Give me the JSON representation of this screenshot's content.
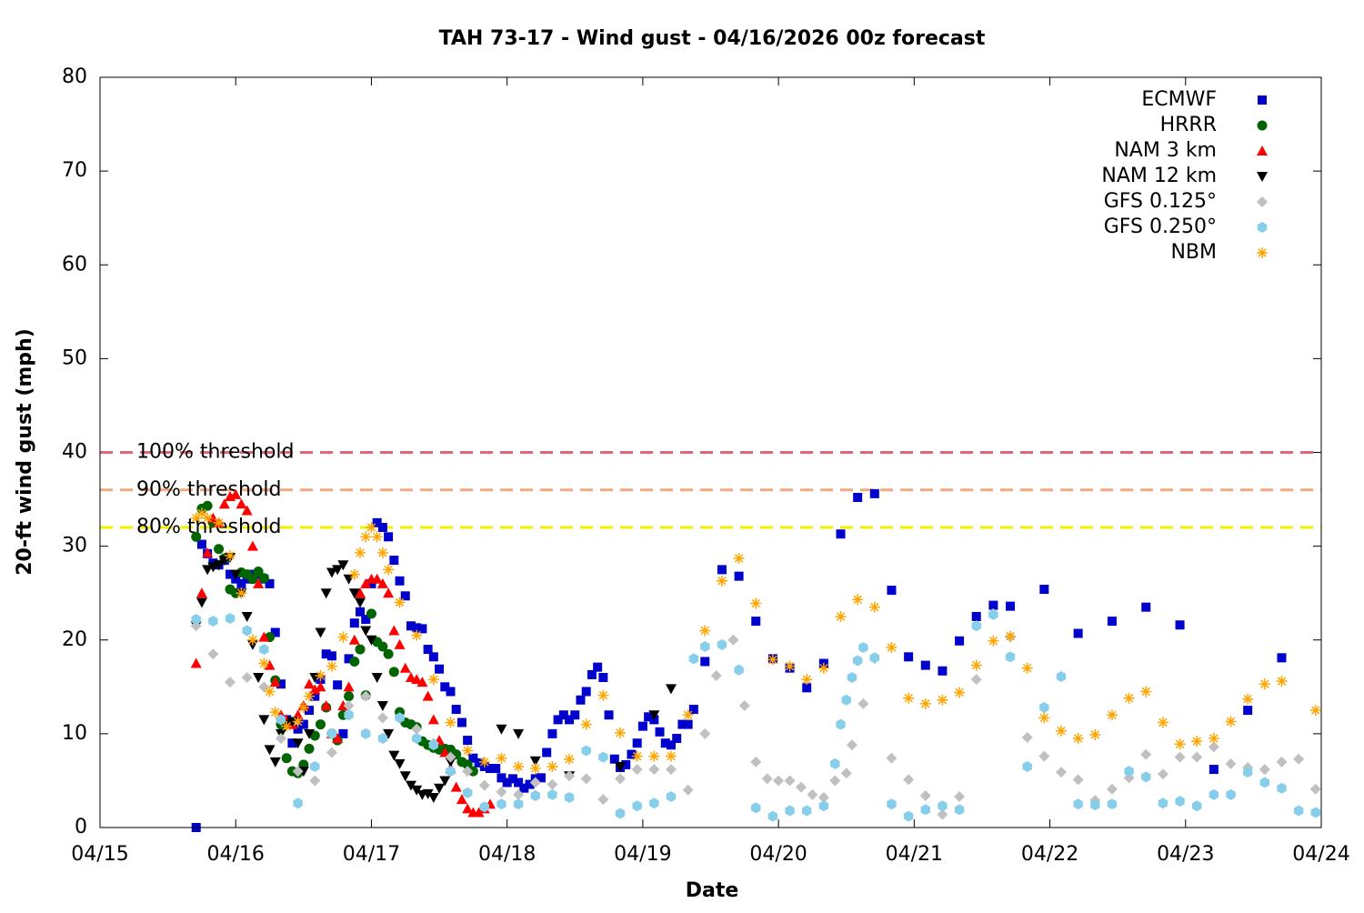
{
  "chart_data": {
    "type": "scatter",
    "title": "TAH 73-17 - Wind gust - 04/16/2026 00z forecast",
    "x_label": "Date",
    "y_label": "20-ft wind gust (mph)",
    "xlim": [
      0,
      216
    ],
    "xticks": [
      {
        "value": 0,
        "label": "04/15"
      },
      {
        "value": 24,
        "label": "04/16"
      },
      {
        "value": 48,
        "label": "04/17"
      },
      {
        "value": 72,
        "label": "04/18"
      },
      {
        "value": 96,
        "label": "04/19"
      },
      {
        "value": 120,
        "label": "04/20"
      },
      {
        "value": 144,
        "label": "04/21"
      },
      {
        "value": 168,
        "label": "04/22"
      },
      {
        "value": 192,
        "label": "04/23"
      },
      {
        "value": 216,
        "label": "04/24"
      }
    ],
    "ylim": [
      0,
      80
    ],
    "yticks": [
      0,
      10,
      20,
      30,
      40,
      50,
      60,
      70,
      80
    ],
    "legend": "upper right",
    "thresholds": [
      {
        "label": "100% threshold",
        "value": 40,
        "color": "#e0667a"
      },
      {
        "label": "90% threshold",
        "value": 36,
        "color": "#f4a97c"
      },
      {
        "label": "80% threshold",
        "value": 32,
        "color": "#f0f000"
      }
    ],
    "series": [
      {
        "name": "ECMWF",
        "color": "#0000cc",
        "marker": "square",
        "x": [
          17,
          18,
          19,
          20,
          21,
          22,
          23,
          24,
          25,
          26,
          27,
          28,
          29,
          30,
          31,
          32,
          33,
          34,
          35,
          36,
          37,
          38,
          39,
          40,
          41,
          42,
          43,
          44,
          45,
          46,
          47,
          48,
          49,
          50,
          51,
          52,
          53,
          54,
          55,
          56,
          57,
          58,
          59,
          60,
          61,
          62,
          63,
          64,
          65,
          66,
          67,
          68,
          69,
          70,
          71,
          72,
          73,
          74,
          75,
          76,
          77,
          78,
          79,
          80,
          81,
          82,
          83,
          84,
          85,
          86,
          87,
          88,
          89,
          90,
          91,
          92,
          93,
          94,
          95,
          96,
          97,
          98,
          99,
          100,
          101,
          102,
          103,
          104,
          105,
          107,
          110,
          113,
          116,
          119,
          122,
          125,
          128,
          131,
          134,
          137,
          140,
          143,
          146,
          149,
          152,
          155,
          158,
          161,
          167,
          173,
          179,
          185,
          191,
          197,
          203,
          209
        ],
        "values": [
          0,
          30.2,
          29.2,
          28.2,
          28,
          28.5,
          27,
          26.5,
          26,
          26.5,
          27,
          27,
          26.5,
          26,
          20.8,
          15.3,
          11.5,
          9,
          10.5,
          11,
          12.5,
          14,
          15.8,
          18.5,
          18.3,
          15.2,
          10,
          18,
          21.8,
          23,
          22.2,
          26,
          32.5,
          32,
          31,
          28.5,
          26.3,
          24.7,
          21.5,
          21.3,
          21.2,
          19,
          18.2,
          16.9,
          15,
          14.5,
          12.6,
          11.2,
          9.3,
          7.4,
          6.9,
          6.5,
          6.3,
          6.3,
          5.3,
          4.8,
          5.2,
          4.8,
          4.2,
          4.6,
          5.2,
          5.3,
          8,
          10,
          11.5,
          12,
          11.5,
          12,
          13.6,
          14.5,
          16.3,
          17.1,
          16,
          12,
          7.3,
          6.4,
          6.7,
          7.8,
          9,
          10.8,
          11.8,
          11.5,
          10.2,
          9,
          8.8,
          9.5,
          11,
          11,
          12.6,
          17.7,
          27.5,
          26.8,
          22,
          18,
          17,
          14.9,
          17.5,
          31.3,
          35.2,
          35.6,
          25.3,
          18.2,
          17.3,
          16.7,
          19.9,
          22.5,
          23.7,
          23.6,
          25.4,
          20.7,
          22,
          23.5,
          21.6,
          6.2,
          12.5,
          18.1
        ]
      },
      {
        "name": "HRRR",
        "color": "#006400",
        "marker": "circle",
        "x": [
          17,
          18,
          19,
          20,
          21,
          22,
          23,
          24,
          25,
          26,
          27,
          28,
          29,
          30,
          31,
          32,
          33,
          34,
          35,
          36,
          37,
          38,
          39,
          40,
          41,
          42,
          43,
          44,
          45,
          46,
          47,
          48,
          49,
          50,
          51,
          52,
          53,
          54,
          55,
          56,
          57,
          58,
          59,
          60,
          61,
          62,
          63,
          64,
          65,
          66
        ],
        "values": [
          31,
          34,
          34.3,
          32.5,
          29.7,
          28.7,
          25.4,
          25,
          27.2,
          27,
          26.5,
          27.3,
          26.6,
          20.3,
          15.7,
          11,
          7.4,
          6,
          5.8,
          6.7,
          8.4,
          9.8,
          11,
          12.8,
          10,
          9.3,
          12,
          14,
          17.7,
          19,
          14.1,
          22.8,
          19.8,
          19.3,
          18.5,
          16.6,
          12.3,
          11.2,
          11,
          10.7,
          9.2,
          8.8,
          8.5,
          8.3,
          8.4,
          8.3,
          7.8,
          7,
          6.7,
          6
        ]
      },
      {
        "name": "NAM 3 km",
        "color": "#ff0000",
        "marker": "triangle",
        "x": [
          17,
          18,
          19,
          20,
          21,
          22,
          23,
          24,
          25,
          26,
          27,
          28,
          29,
          30,
          31,
          32,
          33,
          34,
          35,
          36,
          37,
          38,
          39,
          40,
          41,
          42,
          43,
          44,
          45,
          46,
          47,
          48,
          49,
          50,
          51,
          52,
          53,
          54,
          55,
          56,
          57,
          58,
          59,
          60,
          61,
          62,
          63,
          64,
          65,
          66,
          67,
          68,
          69
        ],
        "values": [
          17.5,
          25,
          29.3,
          33,
          32.5,
          34.5,
          35.3,
          35.5,
          34.5,
          33.8,
          30,
          26,
          20.3,
          17.3,
          15.5,
          12,
          11.5,
          11,
          12,
          13,
          15.3,
          14.7,
          15,
          13,
          10,
          9.5,
          13,
          15,
          20,
          25,
          26,
          26.5,
          26.5,
          26,
          25,
          21,
          19.5,
          17,
          16,
          15.8,
          15.5,
          14,
          11.5,
          9.3,
          8,
          6.3,
          4.3,
          3,
          2,
          1.6,
          1.6,
          2,
          2.5
        ]
      },
      {
        "name": "NAM 12 km",
        "color": "#000000",
        "marker": "triangle-down",
        "x": [
          17,
          18,
          19,
          20,
          21,
          22,
          23,
          24,
          25,
          26,
          27,
          28,
          29,
          30,
          31,
          32,
          33,
          34,
          35,
          36,
          37,
          38,
          39,
          40,
          41,
          42,
          43,
          44,
          45,
          46,
          47,
          48,
          49,
          50,
          51,
          52,
          53,
          54,
          55,
          56,
          57,
          58,
          59,
          60,
          61,
          62,
          71,
          74,
          77,
          83,
          92,
          98,
          101
        ],
        "values": [
          21.5,
          24,
          27.5,
          27.8,
          28,
          28.5,
          28.8,
          27,
          25,
          22.5,
          19.5,
          16,
          11.5,
          8.3,
          7,
          10,
          11,
          11.3,
          9,
          6,
          10,
          16,
          20.8,
          25,
          27.2,
          27.5,
          28,
          26.5,
          25,
          24,
          21,
          20,
          16,
          13,
          10,
          7.7,
          6.8,
          5.5,
          4.5,
          4,
          3.5,
          3.6,
          3.2,
          4.2,
          5,
          7,
          10.5,
          10,
          7.1,
          5.5,
          6.5,
          12,
          14.8
        ]
      },
      {
        "name": "GFS 0.125°",
        "color": "#c0c0c0",
        "marker": "diamond",
        "x": [
          17,
          20,
          23,
          26,
          29,
          32,
          35,
          38,
          41,
          44,
          47,
          50,
          53,
          56,
          59,
          62,
          65,
          68,
          71,
          74,
          77,
          80,
          83,
          86,
          89,
          92,
          95,
          98,
          101,
          104,
          107,
          109,
          112,
          114,
          116,
          118,
          120,
          122,
          124,
          126,
          128,
          130,
          132,
          133,
          135,
          137,
          140,
          143,
          146,
          149,
          152,
          155,
          158,
          161,
          164,
          167,
          170,
          173,
          176,
          179,
          182,
          185,
          188,
          191,
          194,
          197,
          200,
          203,
          206,
          209,
          212,
          215
        ],
        "values": [
          21.5,
          18.5,
          15.5,
          16,
          15,
          9.5,
          6,
          5,
          8,
          13,
          14,
          11.7,
          11.7,
          10.5,
          9,
          7.5,
          6,
          4.5,
          3.8,
          3.5,
          4.8,
          4.6,
          5.5,
          5.2,
          3,
          5.2,
          6.2,
          6.2,
          6.2,
          4,
          10,
          16.2,
          20,
          13,
          7,
          5.2,
          5,
          5,
          4.3,
          3.5,
          3.2,
          5,
          5.8,
          8.8,
          13.2,
          18,
          7.4,
          5.1,
          3.4,
          1.4,
          3.3,
          15.8,
          22.8,
          20.3,
          9.6,
          7.6,
          5.9,
          5.1,
          2.9,
          4.1,
          5.3,
          7.8,
          5.7,
          7.5,
          7.5,
          8.6,
          6.8,
          6.4,
          6.2,
          7,
          7.3,
          4.1
        ]
      },
      {
        "name": "GFS 0.250°",
        "color": "#87ceeb",
        "marker": "hexagon",
        "x": [
          17,
          20,
          23,
          26,
          29,
          32,
          35,
          38,
          41,
          44,
          47,
          50,
          53,
          56,
          59,
          62,
          65,
          68,
          71,
          74,
          77,
          80,
          83,
          86,
          89,
          92,
          95,
          98,
          101,
          105,
          107,
          110,
          113,
          116,
          119,
          122,
          125,
          128,
          130,
          131,
          132,
          133,
          134,
          135,
          137,
          140,
          143,
          146,
          149,
          152,
          155,
          158,
          161,
          164,
          167,
          170,
          173,
          176,
          179,
          182,
          185,
          188,
          191,
          194,
          197,
          200,
          203,
          206,
          209,
          212,
          215
        ],
        "values": [
          22.2,
          22,
          22.3,
          21,
          19,
          11.5,
          2.6,
          6.5,
          10,
          12,
          10,
          9.5,
          11.7,
          9.5,
          8.8,
          6,
          3.7,
          2.2,
          2.5,
          2.5,
          3.4,
          3.5,
          3.2,
          8.2,
          7.5,
          1.5,
          2.3,
          2.6,
          3.3,
          18,
          19.3,
          19.5,
          16.8,
          2.1,
          1.2,
          1.8,
          1.8,
          2.3,
          6.8,
          11,
          13.6,
          16,
          17.8,
          19.2,
          18.1,
          2.5,
          1.2,
          1.9,
          2.3,
          1.9,
          21.5,
          22.7,
          18.2,
          6.5,
          12.8,
          16.1,
          2.5,
          2.4,
          2.5,
          6,
          5.4,
          2.6,
          2.8,
          2.3,
          3.5,
          3.5,
          5.9,
          4.8,
          4.2,
          1.8,
          1.6
        ]
      },
      {
        "name": "NBM",
        "color": "#ffa500",
        "marker": "asterisk",
        "x": [
          17,
          18,
          19,
          21,
          23,
          25,
          27,
          29,
          30,
          31,
          33,
          35,
          36,
          37,
          39,
          41,
          43,
          45,
          46,
          47,
          48,
          49,
          50,
          51,
          53,
          56,
          59,
          62,
          65,
          68,
          71,
          74,
          77,
          80,
          83,
          86,
          89,
          92,
          95,
          98,
          101,
          104,
          107,
          110,
          113,
          116,
          119,
          122,
          125,
          128,
          131,
          134,
          137,
          140,
          143,
          146,
          149,
          152,
          155,
          158,
          161,
          164,
          167,
          170,
          173,
          176,
          179,
          182,
          185,
          188,
          191,
          194,
          197,
          200,
          203,
          206,
          209,
          215
        ],
        "values": [
          33,
          33.5,
          33,
          32.5,
          29,
          25,
          20,
          17.5,
          14.5,
          12.3,
          10.8,
          11.3,
          12.8,
          14,
          16.2,
          17.2,
          20.3,
          27,
          29.3,
          31,
          32,
          31,
          29.3,
          27.5,
          24,
          20.5,
          15.8,
          11.2,
          8.2,
          7,
          7.4,
          6.5,
          6.3,
          6.5,
          7.3,
          11,
          14.1,
          10.1,
          7.6,
          7.6,
          7.6,
          12,
          21,
          26.3,
          28.7,
          23.9,
          17.9,
          17.2,
          15.8,
          17,
          22.5,
          24.3,
          23.5,
          19.2,
          13.8,
          13.2,
          13.6,
          14.4,
          17.3,
          19.9,
          20.4,
          17,
          11.7,
          10.3,
          9.5,
          9.9,
          12,
          13.8,
          14.5,
          11.2,
          8.9,
          9.2,
          9.5,
          11.3,
          13.7,
          15.3,
          15.6,
          12.5
        ]
      }
    ]
  }
}
